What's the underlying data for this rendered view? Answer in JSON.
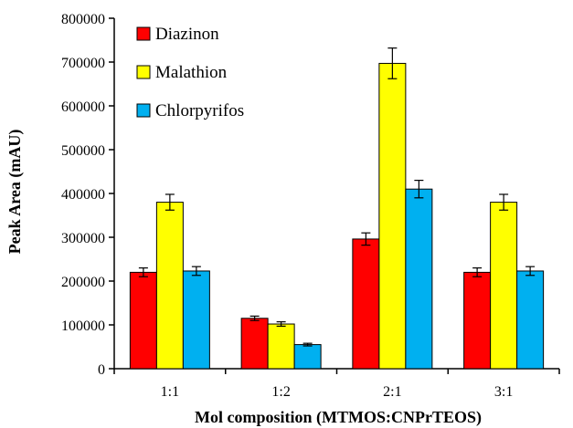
{
  "chart_data": {
    "type": "bar",
    "title": "",
    "xlabel": "Mol composition (MTMOS:CNPrTEOS)",
    "ylabel": "Peak Area (mAU)",
    "ylim": [
      0,
      800000
    ],
    "yticks": [
      0,
      100000,
      200000,
      300000,
      400000,
      500000,
      600000,
      700000,
      800000
    ],
    "ytick_labels": [
      "0",
      "100000",
      "200000",
      "300000",
      "400000",
      "500000",
      "600000",
      "700000",
      "800000"
    ],
    "categories": [
      "1:1",
      "1:2",
      "2:1",
      "3:1"
    ],
    "series": [
      {
        "name": "Diazinon",
        "color": "#ff0000",
        "values": [
          220000,
          115000,
          296000,
          220000
        ],
        "errors": [
          10000,
          5000,
          14000,
          10000
        ]
      },
      {
        "name": "Malathion",
        "color": "#ffff00",
        "values": [
          380000,
          102000,
          697000,
          380000
        ],
        "errors": [
          18000,
          5000,
          35000,
          18000
        ]
      },
      {
        "name": "Chlorpyrifos",
        "color": "#00b0f0",
        "values": [
          223000,
          55000,
          410000,
          223000
        ],
        "errors": [
          10000,
          3000,
          20000,
          10000
        ]
      }
    ],
    "legend_position": "top-left",
    "grid": false
  }
}
